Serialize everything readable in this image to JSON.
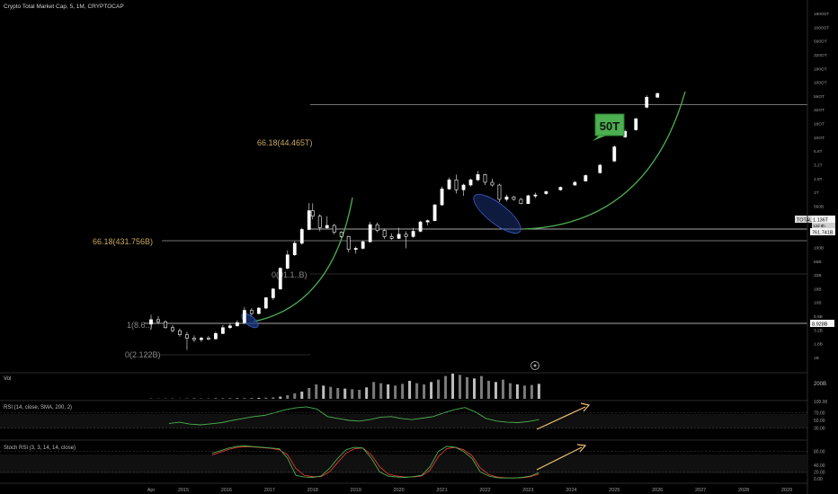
{
  "header": {
    "title": "Crypto Total Market Cap, 5, 1M, CRYPTOCAP"
  },
  "colors": {
    "background": "#000000",
    "candle_up": "#ffffff",
    "candle_down": "#ffffff",
    "curve": "#4caf50",
    "fib_line": "#bdbdbd",
    "fib_label": "#c7a85a",
    "badge_bg": "#4caf50",
    "arrow": "#f0c070",
    "rsi_line": "#4caf50",
    "stoch_k": "#4caf50",
    "stoch_d": "#e53935",
    "ellipse": "#1e3a8a",
    "volume": "#9e9e9e"
  },
  "price_axis": {
    "ticks": [
      "1800OT",
      "1000OT",
      "560OT",
      "320OT",
      "180OT",
      "100OT",
      "56OT",
      "32OT",
      "18OT",
      "10OT",
      "5.6T",
      "3.2T",
      "1.8T",
      "1T",
      "560B",
      "320B",
      "180B",
      "100B",
      "56B",
      "32B",
      "18B",
      "10B",
      "5.6B",
      "3.2B",
      "1.8B",
      "1B"
    ],
    "tag_total": "TOTAL",
    "tag_total_value": "1.136T",
    "tag_total_sub": "12d 8h",
    "tag_level_1": "761.741B",
    "tag_level_2": "8.928B"
  },
  "time_axis": {
    "labels": [
      "Apr",
      "2015",
      "2016",
      "2017",
      "2018",
      "2019",
      "2020",
      "2021",
      "2022",
      "2023",
      "2024",
      "2025",
      "2026",
      "2027",
      "2028",
      "2029"
    ]
  },
  "fib_labels": {
    "upper": "66.18(44.465T)",
    "middle": "66.18(431.756B)",
    "zero_mid": "0(91.1..B)",
    "one_low": "1(8.6..)",
    "zero_low": "0(2.122B)"
  },
  "badge": {
    "text": "50T"
  },
  "volume_pane": {
    "label": "Vol",
    "axis_tick": "200B"
  },
  "rsi_pane": {
    "label": "RSI (14, close, SMA, 200, 2)",
    "ticks": [
      "100.00",
      "70.00",
      "50.00",
      "30.00"
    ]
  },
  "stoch_pane": {
    "label": "Stoch RSI (3, 3, 14, 14, close)",
    "ticks": [
      "80.00",
      "40.00",
      "20.00",
      "0.00"
    ]
  },
  "chart_data": {
    "type": "candlestick",
    "title": "Crypto Total Market Cap, 5, 1M, CRYPTOCAP",
    "y_scale": "log",
    "x_range": [
      "2014-04",
      "2029-06"
    ],
    "y_range_usd": [
      1000000000.0,
      1800000000000000.0
    ],
    "candles": [
      {
        "x": "2014-04",
        "o": 6000000000.0,
        "h": 8800000000.0,
        "l": 4800000000.0,
        "c": 7200000000.0
      },
      {
        "x": "2014-06",
        "o": 7200000000.0,
        "h": 8300000000.0,
        "l": 6000000000.0,
        "c": 6600000000.0
      },
      {
        "x": "2014-08",
        "o": 6600000000.0,
        "h": 7000000000.0,
        "l": 5000000000.0,
        "c": 5200000000.0
      },
      {
        "x": "2014-10",
        "o": 5200000000.0,
        "h": 5800000000.0,
        "l": 4300000000.0,
        "c": 4600000000.0
      },
      {
        "x": "2014-12",
        "o": 4600000000.0,
        "h": 5000000000.0,
        "l": 3600000000.0,
        "c": 3900000000.0
      },
      {
        "x": "2015-02",
        "o": 3900000000.0,
        "h": 4400000000.0,
        "l": 2100000000.0,
        "c": 3400000000.0
      },
      {
        "x": "2015-04",
        "o": 3400000000.0,
        "h": 3800000000.0,
        "l": 2900000000.0,
        "c": 3200000000.0
      },
      {
        "x": "2015-06",
        "o": 3200000000.0,
        "h": 3600000000.0,
        "l": 2900000000.0,
        "c": 3400000000.0
      },
      {
        "x": "2015-08",
        "o": 3400000000.0,
        "h": 3700000000.0,
        "l": 3100000000.0,
        "c": 3300000000.0
      },
      {
        "x": "2015-10",
        "o": 3300000000.0,
        "h": 4400000000.0,
        "l": 3200000000.0,
        "c": 4100000000.0
      },
      {
        "x": "2015-12",
        "o": 4100000000.0,
        "h": 5800000000.0,
        "l": 4000000000.0,
        "c": 5200000000.0
      },
      {
        "x": "2016-02",
        "o": 5200000000.0,
        "h": 6300000000.0,
        "l": 4900000000.0,
        "c": 5600000000.0
      },
      {
        "x": "2016-04",
        "o": 5600000000.0,
        "h": 7000000000.0,
        "l": 5400000000.0,
        "c": 6400000000.0
      },
      {
        "x": "2016-06",
        "o": 6400000000.0,
        "h": 12000000000.0,
        "l": 6000000000.0,
        "c": 10500000000.0
      },
      {
        "x": "2016-08",
        "o": 10500000000.0,
        "h": 11500000000.0,
        "l": 8500000000.0,
        "c": 9200000000.0
      },
      {
        "x": "2016-10",
        "o": 9200000000.0,
        "h": 12000000000.0,
        "l": 9000000000.0,
        "c": 11500000000.0
      },
      {
        "x": "2016-12",
        "o": 11500000000.0,
        "h": 18000000000.0,
        "l": 11000000000.0,
        "c": 17500000000.0
      },
      {
        "x": "2017-02",
        "o": 17500000000.0,
        "h": 26000000000.0,
        "l": 16000000000.0,
        "c": 25000000000.0
      },
      {
        "x": "2017-04",
        "o": 25000000000.0,
        "h": 60000000000.0,
        "l": 24000000000.0,
        "c": 58000000000.0
      },
      {
        "x": "2017-06",
        "o": 58000000000.0,
        "h": 120000000000.0,
        "l": 55000000000.0,
        "c": 100000000000.0
      },
      {
        "x": "2017-08",
        "o": 100000000000.0,
        "h": 175000000000.0,
        "l": 95000000000.0,
        "c": 160000000000.0
      },
      {
        "x": "2017-10",
        "o": 160000000000.0,
        "h": 300000000000.0,
        "l": 150000000000.0,
        "c": 280000000000.0
      },
      {
        "x": "2017-12",
        "o": 280000000000.0,
        "h": 820000000000.0,
        "l": 270000000000.0,
        "c": 600000000000.0
      },
      {
        "x": "2018-01",
        "o": 600000000000.0,
        "h": 810000000000.0,
        "l": 420000000000.0,
        "c": 480000000000.0
      },
      {
        "x": "2018-03",
        "o": 480000000000.0,
        "h": 520000000000.0,
        "l": 260000000000.0,
        "c": 300000000000.0
      },
      {
        "x": "2018-05",
        "o": 300000000000.0,
        "h": 480000000000.0,
        "l": 290000000000.0,
        "c": 330000000000.0
      },
      {
        "x": "2018-07",
        "o": 330000000000.0,
        "h": 350000000000.0,
        "l": 230000000000.0,
        "c": 250000000000.0
      },
      {
        "x": "2018-09",
        "o": 250000000000.0,
        "h": 260000000000.0,
        "l": 200000000000.0,
        "c": 210000000000.0
      },
      {
        "x": "2018-11",
        "o": 210000000000.0,
        "h": 215000000000.0,
        "l": 110000000000.0,
        "c": 125000000000.0
      },
      {
        "x": "2019-01",
        "o": 125000000000.0,
        "h": 140000000000.0,
        "l": 105000000000.0,
        "c": 130000000000.0
      },
      {
        "x": "2019-03",
        "o": 130000000000.0,
        "h": 180000000000.0,
        "l": 125000000000.0,
        "c": 170000000000.0
      },
      {
        "x": "2019-05",
        "o": 170000000000.0,
        "h": 380000000000.0,
        "l": 165000000000.0,
        "c": 340000000000.0
      },
      {
        "x": "2019-07",
        "o": 340000000000.0,
        "h": 370000000000.0,
        "l": 250000000000.0,
        "c": 270000000000.0
      },
      {
        "x": "2019-09",
        "o": 270000000000.0,
        "h": 290000000000.0,
        "l": 190000000000.0,
        "c": 210000000000.0
      },
      {
        "x": "2019-11",
        "o": 210000000000.0,
        "h": 240000000000.0,
        "l": 185000000000.0,
        "c": 195000000000.0
      },
      {
        "x": "2020-01",
        "o": 195000000000.0,
        "h": 300000000000.0,
        "l": 190000000000.0,
        "c": 230000000000.0
      },
      {
        "x": "2020-03",
        "o": 230000000000.0,
        "h": 260000000000.0,
        "l": 130000000000.0,
        "c": 210000000000.0
      },
      {
        "x": "2020-05",
        "o": 210000000000.0,
        "h": 300000000000.0,
        "l": 200000000000.0,
        "c": 260000000000.0
      },
      {
        "x": "2020-07",
        "o": 260000000000.0,
        "h": 400000000000.0,
        "l": 250000000000.0,
        "c": 380000000000.0
      },
      {
        "x": "2020-09",
        "o": 380000000000.0,
        "h": 420000000000.0,
        "l": 330000000000.0,
        "c": 400000000000.0
      },
      {
        "x": "2020-11",
        "o": 400000000000.0,
        "h": 780000000000.0,
        "l": 390000000000.0,
        "c": 760000000000.0
      },
      {
        "x": "2021-01",
        "o": 760000000000.0,
        "h": 1600000000000.0,
        "l": 730000000000.0,
        "c": 1450000000000.0
      },
      {
        "x": "2021-03",
        "o": 1450000000000.0,
        "h": 2300000000000.0,
        "l": 1400000000000.0,
        "c": 2100000000000.0
      },
      {
        "x": "2021-05",
        "o": 2100000000000.0,
        "h": 2600000000000.0,
        "l": 1200000000000.0,
        "c": 1400000000000.0
      },
      {
        "x": "2021-07",
        "o": 1400000000000.0,
        "h": 1800000000000.0,
        "l": 1100000000000.0,
        "c": 1700000000000.0
      },
      {
        "x": "2021-09",
        "o": 1700000000000.0,
        "h": 2200000000000.0,
        "l": 1600000000000.0,
        "c": 2100000000000.0
      },
      {
        "x": "2021-11",
        "o": 2100000000000.0,
        "h": 3000000000000.0,
        "l": 2000000000000.0,
        "c": 2600000000000.0
      },
      {
        "x": "2022-01",
        "o": 2600000000000.0,
        "h": 2700000000000.0,
        "l": 1700000000000.0,
        "c": 1900000000000.0
      },
      {
        "x": "2022-03",
        "o": 1900000000000.0,
        "h": 2200000000000.0,
        "l": 1600000000000.0,
        "c": 1700000000000.0
      },
      {
        "x": "2022-05",
        "o": 1700000000000.0,
        "h": 1800000000000.0,
        "l": 850000000000.0,
        "c": 950000000000.0
      },
      {
        "x": "2022-07",
        "o": 950000000000.0,
        "h": 1150000000000.0,
        "l": 880000000000.0,
        "c": 1050000000000.0
      },
      {
        "x": "2022-09",
        "o": 1050000000000.0,
        "h": 1100000000000.0,
        "l": 900000000000.0,
        "c": 950000000000.0
      },
      {
        "x": "2022-11",
        "o": 950000000000.0,
        "h": 1000000000000.0,
        "l": 780000000000.0,
        "c": 800000000000.0
      },
      {
        "x": "2023-01",
        "o": 800000000000.0,
        "h": 1150000000000.0,
        "l": 790000000000.0,
        "c": 1100000000000.0
      },
      {
        "x": "2023-03",
        "o": 1100000000000.0,
        "h": 1250000000000.0,
        "l": 1000000000000.0,
        "c": 1136000000000.0
      },
      {
        "x": "2023-06",
        "o": 1200000000000.0,
        "h": 1350000000000.0,
        "l": 1150000000000.0,
        "c": 1300000000000.0
      },
      {
        "x": "2023-10",
        "o": 1400000000000.0,
        "h": 1600000000000.0,
        "l": 1350000000000.0,
        "c": 1550000000000.0
      },
      {
        "x": "2024-02",
        "o": 1700000000000.0,
        "h": 2000000000000.0,
        "l": 1650000000000.0,
        "c": 1900000000000.0
      },
      {
        "x": "2024-05",
        "o": 2000000000000.0,
        "h": 2600000000000.0,
        "l": 1950000000000.0,
        "c": 2500000000000.0
      },
      {
        "x": "2024-09",
        "o": 2800000000000.0,
        "h": 4000000000000.0,
        "l": 2700000000000.0,
        "c": 3800000000000.0
      },
      {
        "x": "2025-01",
        "o": 4500000000000.0,
        "h": 8500000000000.0,
        "l": 4300000000000.0,
        "c": 8000000000000.0
      },
      {
        "x": "2025-04",
        "o": 12000000000000.0,
        "h": 16000000000000.0,
        "l": 11500000000000.0,
        "c": 15000000000000.0
      },
      {
        "x": "2025-07",
        "o": 16000000000000.0,
        "h": 26000000000000.0,
        "l": 15500000000000.0,
        "c": 25000000000000.0
      },
      {
        "x": "2025-10",
        "o": 40000000000000.0,
        "h": 65000000000000.0,
        "l": 38000000000000.0,
        "c": 60000000000000.0
      },
      {
        "x": "2026-01",
        "o": 60000000000000.0,
        "h": 72000000000000.0,
        "l": 58000000000000.0,
        "c": 70000000000000.0
      }
    ],
    "fib_levels": [
      {
        "label": "66.18(44.465T)",
        "value": 44465000000000.0
      },
      {
        "label": "66.18(431.756B)",
        "value": 431756000000.0
      },
      {
        "label": "1(8.6..)",
        "value": 8600000000.0
      },
      {
        "label": "0(2.122B)",
        "value": 2122000000.0
      },
      {
        "level": "761.741B",
        "value": 761741000000.0
      },
      {
        "level": "8.928B",
        "value": 8928000000.0
      }
    ],
    "annotations": [
      "50T"
    ],
    "volume": {
      "label": "Vol",
      "values_b": [
        2,
        2,
        3,
        2,
        2,
        3,
        3,
        3,
        3,
        4,
        5,
        6,
        5,
        6,
        7,
        8,
        9,
        12,
        18,
        30,
        45,
        60,
        90,
        120,
        110,
        100,
        90,
        85,
        80,
        75,
        95,
        140,
        130,
        120,
        110,
        125,
        150,
        130,
        120,
        140,
        160,
        190,
        210,
        200,
        180,
        170,
        190,
        150,
        140,
        160,
        130,
        120,
        110,
        115,
        125
      ]
    },
    "rsi": {
      "label": "RSI (14, close, SMA, 200, 2)",
      "ylim": [
        0,
        100
      ],
      "values": [
        42,
        45,
        40,
        38,
        41,
        44,
        50,
        55,
        60,
        63,
        70,
        78,
        83,
        86,
        80,
        60,
        55,
        50,
        48,
        52,
        58,
        60,
        55,
        52,
        56,
        60,
        70,
        78,
        84,
        72,
        55,
        48,
        45,
        44,
        47,
        52
      ]
    },
    "stoch_rsi": {
      "label": "Stoch RSI (3, 3, 14, 14, close)",
      "ylim": [
        0,
        100
      ],
      "k": [
        75,
        82,
        90,
        95,
        96,
        94,
        92,
        90,
        88,
        60,
        10,
        5,
        4,
        8,
        30,
        60,
        85,
        92,
        90,
        60,
        20,
        8,
        5,
        4,
        6,
        10,
        35,
        80,
        95,
        92,
        80,
        60,
        20,
        8,
        3,
        2,
        2,
        4,
        8,
        18
      ],
      "d": [
        70,
        78,
        86,
        92,
        94,
        93,
        91,
        89,
        85,
        70,
        30,
        10,
        6,
        6,
        20,
        48,
        75,
        88,
        90,
        70,
        35,
        14,
        8,
        5,
        5,
        8,
        25,
        65,
        88,
        92,
        85,
        68,
        32,
        12,
        5,
        3,
        2,
        3,
        6,
        14
      ]
    }
  }
}
